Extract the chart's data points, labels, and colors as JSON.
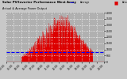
{
  "title": "Solar PV/Inverter Performance West Array",
  "subtitle": "Actual & Average Power Output",
  "bg_color": "#c8c8c8",
  "plot_bg_color": "#b0b0b0",
  "grid_color": "#ffffff",
  "bar_color": "#dd0000",
  "avg_line_color": "#0000ff",
  "text_color": "#000000",
  "legend_actual_color": "#dd0000",
  "legend_avg_color": "#0000ff",
  "n_points": 288,
  "peak_value": 3800,
  "avg_value": 800,
  "ylim": [
    0,
    4000
  ],
  "ylabel_ticks": [
    0,
    500,
    1000,
    1500,
    2000,
    2500,
    3000,
    3500,
    4000
  ],
  "figsize": [
    1.6,
    1.0
  ],
  "dpi": 100
}
